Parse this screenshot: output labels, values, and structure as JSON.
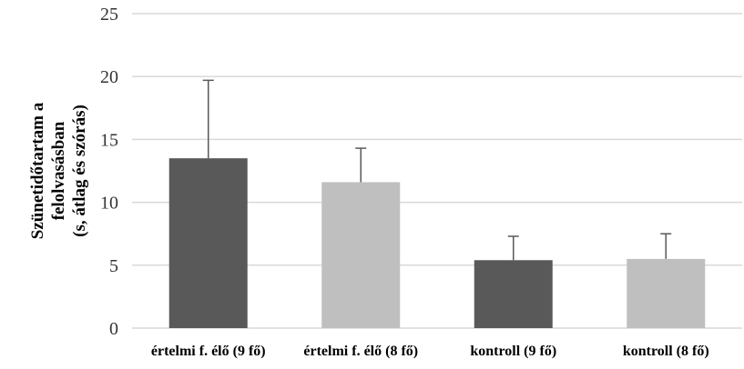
{
  "chart_data": {
    "type": "bar",
    "title": "",
    "xlabel": "",
    "ylabel_lines": [
      "Szünetidőtartam a",
      "felolvasásban",
      "(s, átlag és szórás)"
    ],
    "categories": [
      "értelmi f. élő (9 fő)",
      "értelmi f. élő (8 fő)",
      "kontroll (9 fő)",
      "kontroll (8 fő)"
    ],
    "values": [
      13.5,
      11.6,
      5.4,
      5.5
    ],
    "error_upper": [
      6.2,
      2.7,
      1.9,
      2.0
    ],
    "bar_colors": [
      "#595959",
      "#bfbfbf",
      "#595959",
      "#bfbfbf"
    ],
    "error_bar_color": "#595959",
    "grid_color": "#d9d9d9",
    "ylim": [
      0,
      25
    ],
    "yticks": [
      0,
      5,
      10,
      15,
      20,
      25
    ],
    "grid": true,
    "legend": "none"
  }
}
